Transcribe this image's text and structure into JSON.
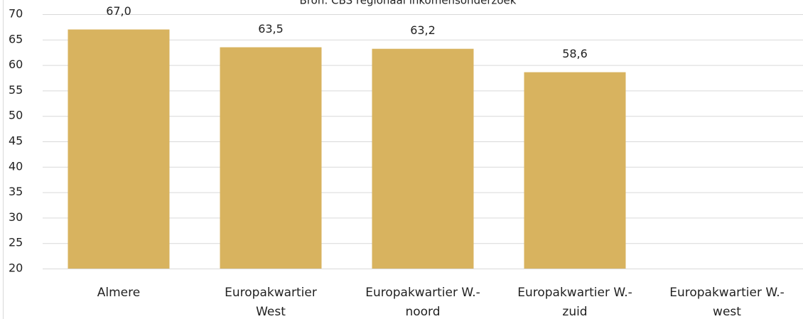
{
  "chart_data": {
    "type": "bar",
    "subtitle": "Bron: CBS regionaal inkomensonderzoek",
    "categories": [
      [
        "Almere"
      ],
      [
        "Europakwartier",
        "West"
      ],
      [
        "Europakwartier W.-",
        "noord"
      ],
      [
        "Europakwartier W.-",
        "zuid"
      ],
      [
        "Europakwartier W.-",
        "west"
      ]
    ],
    "values": [
      67.0,
      63.5,
      63.2,
      58.6,
      null
    ],
    "value_labels": [
      "67,0",
      "63,5",
      "63,2",
      "58,6",
      null
    ],
    "color": "#d8b35f",
    "ylim": [
      20,
      70
    ],
    "yticks": [
      20,
      25,
      30,
      35,
      40,
      45,
      50,
      55,
      60,
      65,
      70
    ],
    "grid": true
  }
}
